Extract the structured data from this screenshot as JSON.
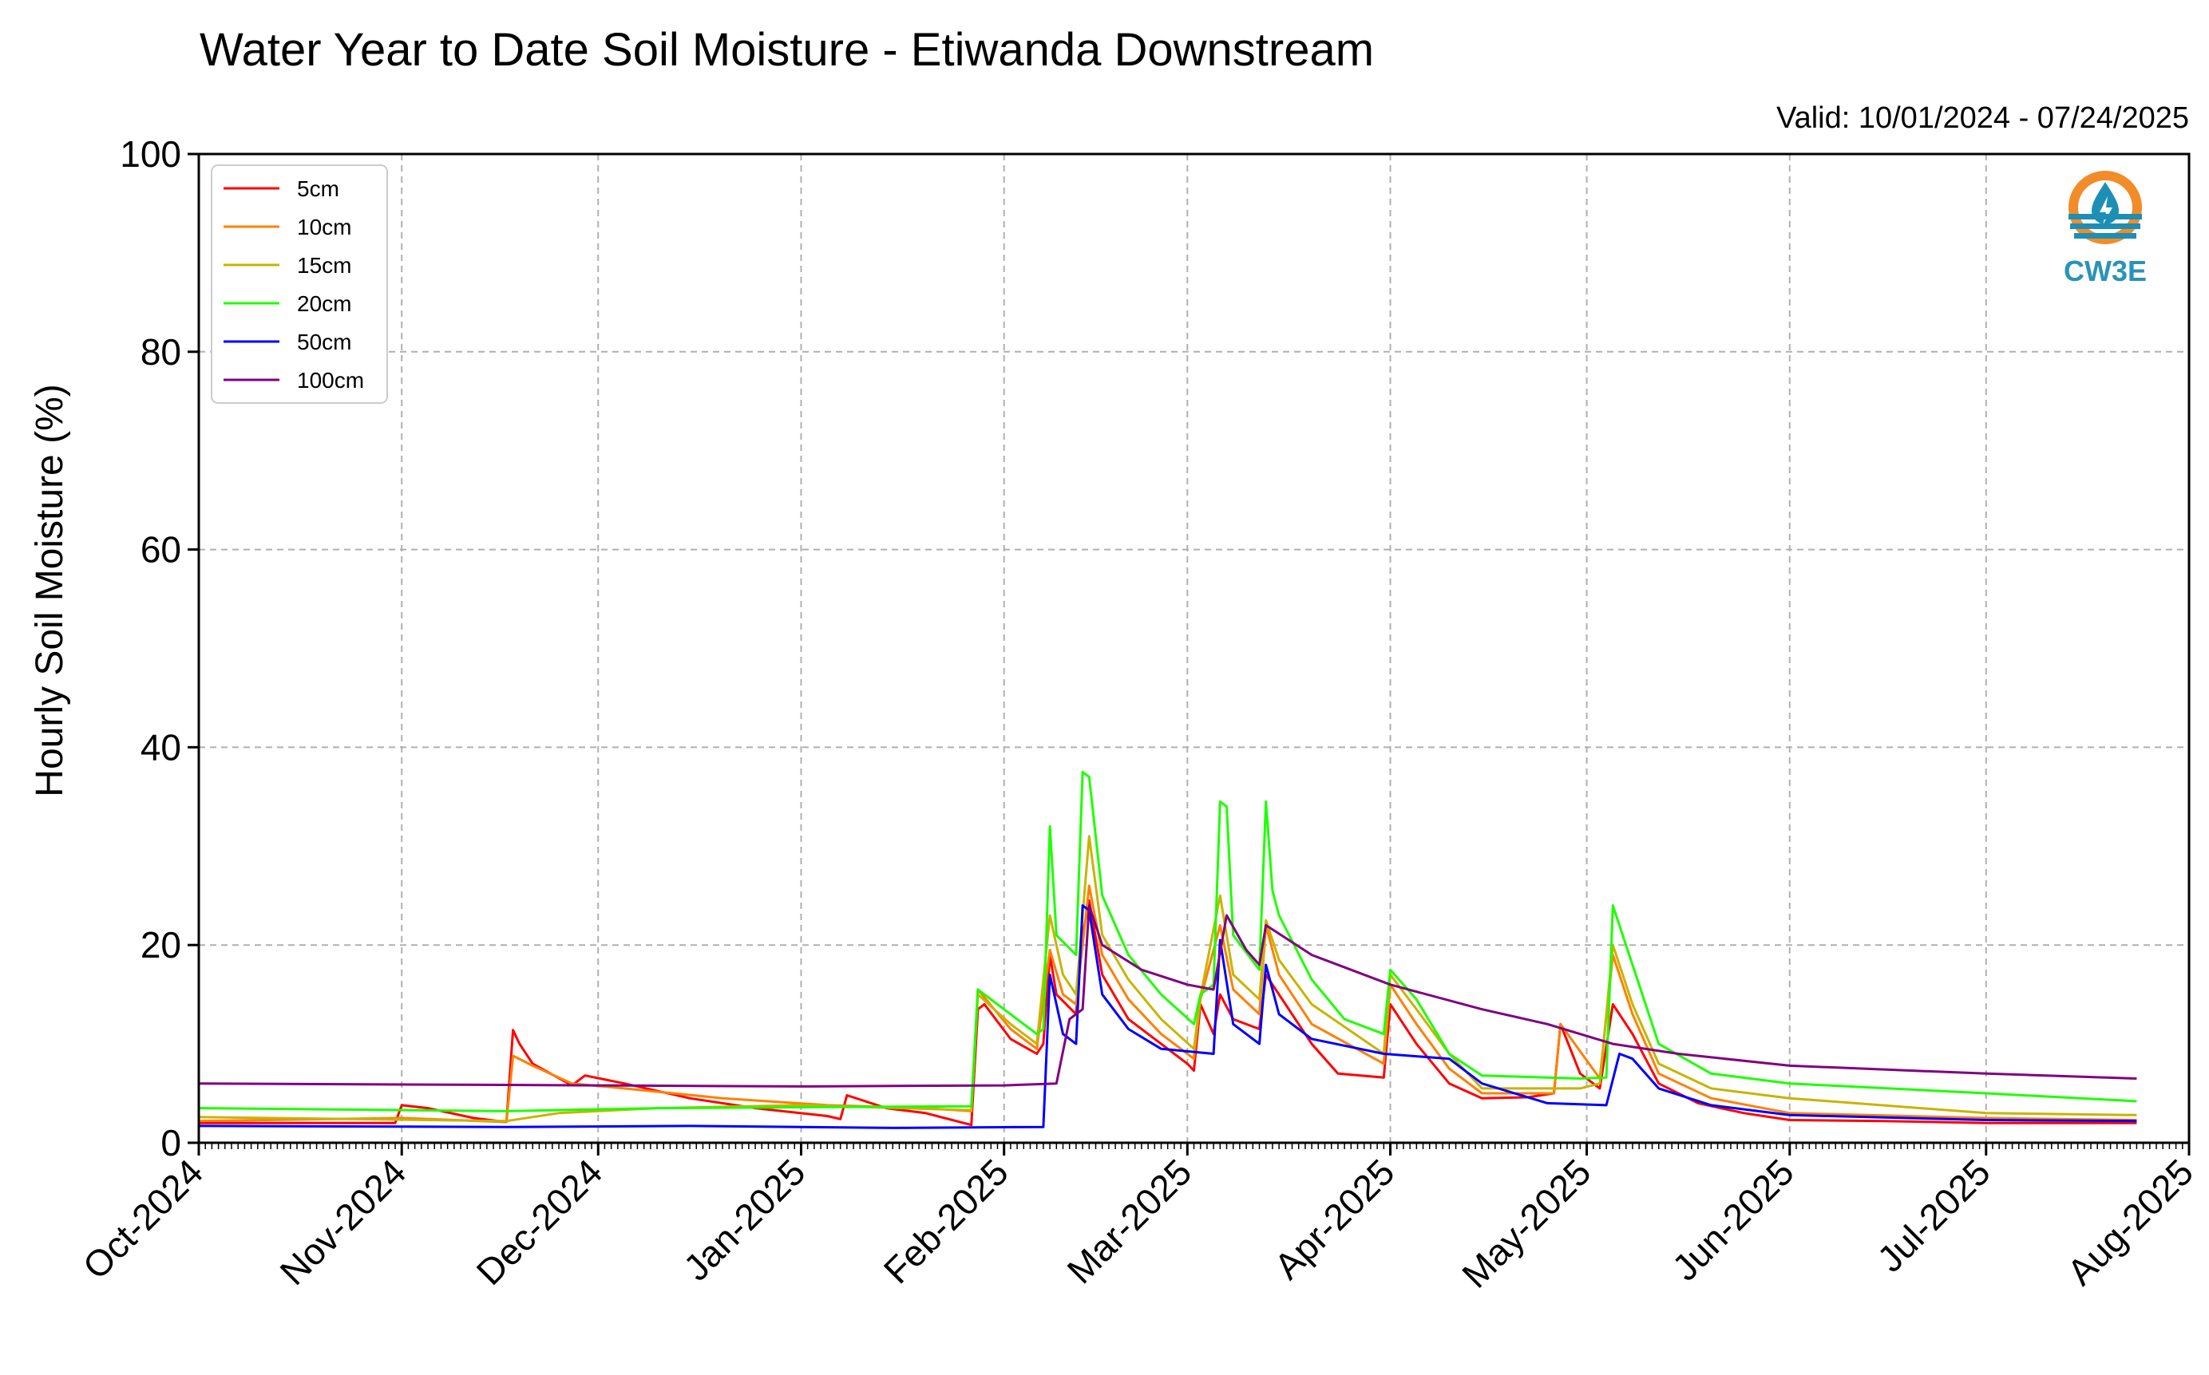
{
  "chart_data": {
    "type": "line",
    "title": "Water Year to Date Soil Moisture - Etiwanda Downstream",
    "valid_label": "Valid: 10/01/2024 - 07/24/2025",
    "ylabel": "Hourly Soil Moisture (%)",
    "xlabel": "",
    "ylim": [
      0,
      100
    ],
    "xlim": [
      "2024-10-01",
      "2025-08-01"
    ],
    "y_ticks": [
      "0",
      "20",
      "40",
      "60",
      "80",
      "100"
    ],
    "x_ticks": [
      {
        "date": "2024-10-01",
        "label": "Oct-2024"
      },
      {
        "date": "2024-11-01",
        "label": "Nov-2024"
      },
      {
        "date": "2024-12-01",
        "label": "Dec-2024"
      },
      {
        "date": "2025-01-01",
        "label": "Jan-2025"
      },
      {
        "date": "2025-02-01",
        "label": "Feb-2025"
      },
      {
        "date": "2025-03-01",
        "label": "Mar-2025"
      },
      {
        "date": "2025-04-01",
        "label": "Apr-2025"
      },
      {
        "date": "2025-05-01",
        "label": "May-2025"
      },
      {
        "date": "2025-06-01",
        "label": "Jun-2025"
      },
      {
        "date": "2025-07-01",
        "label": "Jul-2025"
      },
      {
        "date": "2025-08-01",
        "label": "Aug-2025"
      }
    ],
    "grid": true,
    "legend_position": "top-left",
    "series": [
      {
        "name": "5cm",
        "color": "#ff0000",
        "points": [
          [
            "2024-10-01",
            2.0
          ],
          [
            "2024-10-31",
            2.0
          ],
          [
            "2024-11-01",
            3.8
          ],
          [
            "2024-11-05",
            3.5
          ],
          [
            "2024-11-12",
            2.5
          ],
          [
            "2024-11-17",
            2.1
          ],
          [
            "2024-11-18",
            11.4
          ],
          [
            "2024-11-19",
            10.0
          ],
          [
            "2024-11-21",
            8.0
          ],
          [
            "2024-11-27",
            5.8
          ],
          [
            "2024-11-29",
            6.8
          ],
          [
            "2024-12-05",
            6.0
          ],
          [
            "2024-12-15",
            4.5
          ],
          [
            "2024-12-25",
            3.5
          ],
          [
            "2025-01-05",
            2.7
          ],
          [
            "2025-01-07",
            2.4
          ],
          [
            "2025-01-08",
            4.8
          ],
          [
            "2025-01-14",
            3.5
          ],
          [
            "2025-01-20",
            3.0
          ],
          [
            "2025-01-27",
            1.8
          ],
          [
            "2025-01-28",
            13.5
          ],
          [
            "2025-01-29",
            14.0
          ],
          [
            "2025-02-02",
            10.5
          ],
          [
            "2025-02-06",
            9.0
          ],
          [
            "2025-02-07",
            10.0
          ],
          [
            "2025-02-08",
            19.0
          ],
          [
            "2025-02-09",
            15.0
          ],
          [
            "2025-02-12",
            13.0
          ],
          [
            "2025-02-13",
            21.0
          ],
          [
            "2025-02-14",
            24.5
          ],
          [
            "2025-02-16",
            17.0
          ],
          [
            "2025-02-20",
            12.5
          ],
          [
            "2025-02-25",
            10.0
          ],
          [
            "2025-03-01",
            8.0
          ],
          [
            "2025-03-02",
            7.3
          ],
          [
            "2025-03-03",
            14.0
          ],
          [
            "2025-03-05",
            11.0
          ],
          [
            "2025-03-06",
            15.0
          ],
          [
            "2025-03-08",
            12.5
          ],
          [
            "2025-03-12",
            11.5
          ],
          [
            "2025-03-13",
            17.0
          ],
          [
            "2025-03-15",
            15.0
          ],
          [
            "2025-03-20",
            10.0
          ],
          [
            "2025-03-24",
            7.0
          ],
          [
            "2025-03-31",
            6.6
          ],
          [
            "2025-04-01",
            14.0
          ],
          [
            "2025-04-05",
            10.0
          ],
          [
            "2025-04-10",
            6.0
          ],
          [
            "2025-04-15",
            4.5
          ],
          [
            "2025-04-22",
            4.6
          ],
          [
            "2025-04-26",
            5.0
          ],
          [
            "2025-04-27",
            12.0
          ],
          [
            "2025-04-30",
            7.0
          ],
          [
            "2025-05-03",
            5.5
          ],
          [
            "2025-05-05",
            14.0
          ],
          [
            "2025-05-08",
            11.0
          ],
          [
            "2025-05-12",
            6.0
          ],
          [
            "2025-05-18",
            4.0
          ],
          [
            "2025-05-25",
            3.0
          ],
          [
            "2025-06-01",
            2.3
          ],
          [
            "2025-06-15",
            2.2
          ],
          [
            "2025-07-01",
            2.0
          ],
          [
            "2025-07-24",
            2.0
          ]
        ]
      },
      {
        "name": "10cm",
        "color": "#ff8000",
        "points": [
          [
            "2024-10-01",
            2.2
          ],
          [
            "2024-11-01",
            2.5
          ],
          [
            "2024-11-17",
            2.1
          ],
          [
            "2024-11-18",
            8.8
          ],
          [
            "2024-11-21",
            7.8
          ],
          [
            "2024-11-27",
            6.0
          ],
          [
            "2024-12-05",
            5.5
          ],
          [
            "2024-12-20",
            4.5
          ],
          [
            "2025-01-05",
            3.8
          ],
          [
            "2025-01-20",
            3.5
          ],
          [
            "2025-01-27",
            3.2
          ],
          [
            "2025-01-28",
            15.5
          ],
          [
            "2025-02-02",
            11.5
          ],
          [
            "2025-02-06",
            9.5
          ],
          [
            "2025-02-08",
            19.5
          ],
          [
            "2025-02-10",
            15.0
          ],
          [
            "2025-02-12",
            14.0
          ],
          [
            "2025-02-14",
            26.0
          ],
          [
            "2025-02-16",
            19.0
          ],
          [
            "2025-02-20",
            14.5
          ],
          [
            "2025-02-25",
            11.0
          ],
          [
            "2025-03-02",
            8.5
          ],
          [
            "2025-03-03",
            14.5
          ],
          [
            "2025-03-06",
            22.0
          ],
          [
            "2025-03-08",
            15.5
          ],
          [
            "2025-03-12",
            13.0
          ],
          [
            "2025-03-13",
            22.0
          ],
          [
            "2025-03-15",
            17.0
          ],
          [
            "2025-03-20",
            12.0
          ],
          [
            "2025-03-31",
            8.0
          ],
          [
            "2025-04-01",
            16.0
          ],
          [
            "2025-04-05",
            12.0
          ],
          [
            "2025-04-10",
            7.5
          ],
          [
            "2025-04-15",
            5.0
          ],
          [
            "2025-04-26",
            5.0
          ],
          [
            "2025-04-27",
            12.0
          ],
          [
            "2025-05-03",
            6.5
          ],
          [
            "2025-05-05",
            19.0
          ],
          [
            "2025-05-08",
            13.0
          ],
          [
            "2025-05-12",
            7.0
          ],
          [
            "2025-05-20",
            4.5
          ],
          [
            "2025-06-01",
            3.0
          ],
          [
            "2025-07-01",
            2.5
          ],
          [
            "2025-07-24",
            2.3
          ]
        ]
      },
      {
        "name": "15cm",
        "color": "#c8b400",
        "points": [
          [
            "2024-10-01",
            2.6
          ],
          [
            "2024-11-17",
            2.2
          ],
          [
            "2024-11-25",
            3.0
          ],
          [
            "2024-12-10",
            3.5
          ],
          [
            "2025-01-01",
            3.8
          ],
          [
            "2025-01-27",
            3.3
          ],
          [
            "2025-01-28",
            15.0
          ],
          [
            "2025-02-02",
            12.0
          ],
          [
            "2025-02-06",
            10.0
          ],
          [
            "2025-02-08",
            23.0
          ],
          [
            "2025-02-10",
            17.0
          ],
          [
            "2025-02-12",
            15.0
          ],
          [
            "2025-02-14",
            31.0
          ],
          [
            "2025-02-16",
            21.0
          ],
          [
            "2025-02-20",
            16.5
          ],
          [
            "2025-02-25",
            12.5
          ],
          [
            "2025-03-02",
            9.5
          ],
          [
            "2025-03-03",
            14.8
          ],
          [
            "2025-03-06",
            25.0
          ],
          [
            "2025-03-08",
            17.0
          ],
          [
            "2025-03-12",
            14.5
          ],
          [
            "2025-03-13",
            22.5
          ],
          [
            "2025-03-15",
            18.5
          ],
          [
            "2025-03-20",
            14.0
          ],
          [
            "2025-03-31",
            9.0
          ],
          [
            "2025-04-01",
            17.0
          ],
          [
            "2025-04-05",
            13.5
          ],
          [
            "2025-04-10",
            9.0
          ],
          [
            "2025-04-15",
            5.5
          ],
          [
            "2025-04-30",
            5.5
          ],
          [
            "2025-05-03",
            6.0
          ],
          [
            "2025-05-05",
            20.0
          ],
          [
            "2025-05-08",
            14.0
          ],
          [
            "2025-05-12",
            8.0
          ],
          [
            "2025-05-20",
            5.5
          ],
          [
            "2025-06-01",
            4.5
          ],
          [
            "2025-07-01",
            3.0
          ],
          [
            "2025-07-24",
            2.8
          ]
        ]
      },
      {
        "name": "20cm",
        "color": "#1eff00",
        "points": [
          [
            "2024-10-01",
            3.5
          ],
          [
            "2024-11-17",
            3.2
          ],
          [
            "2024-12-10",
            3.5
          ],
          [
            "2025-01-27",
            3.7
          ],
          [
            "2025-01-28",
            15.5
          ],
          [
            "2025-02-06",
            11.0
          ],
          [
            "2025-02-07",
            11.5
          ],
          [
            "2025-02-08",
            32.0
          ],
          [
            "2025-02-09",
            21.0
          ],
          [
            "2025-02-12",
            19.0
          ],
          [
            "2025-02-13",
            37.5
          ],
          [
            "2025-02-14",
            37.0
          ],
          [
            "2025-02-16",
            25.0
          ],
          [
            "2025-02-20",
            19.0
          ],
          [
            "2025-02-25",
            15.0
          ],
          [
            "2025-03-02",
            12.0
          ],
          [
            "2025-03-03",
            15.0
          ],
          [
            "2025-03-05",
            16.0
          ],
          [
            "2025-03-06",
            34.5
          ],
          [
            "2025-03-07",
            34.0
          ],
          [
            "2025-03-08",
            21.0
          ],
          [
            "2025-03-12",
            17.5
          ],
          [
            "2025-03-13",
            34.5
          ],
          [
            "2025-03-14",
            25.5
          ],
          [
            "2025-03-15",
            23.0
          ],
          [
            "2025-03-20",
            16.5
          ],
          [
            "2025-03-25",
            12.5
          ],
          [
            "2025-03-31",
            11.0
          ],
          [
            "2025-04-01",
            17.5
          ],
          [
            "2025-04-05",
            14.5
          ],
          [
            "2025-04-10",
            9.0
          ],
          [
            "2025-04-15",
            6.8
          ],
          [
            "2025-04-30",
            6.5
          ],
          [
            "2025-05-04",
            6.6
          ],
          [
            "2025-05-05",
            24.0
          ],
          [
            "2025-05-08",
            18.0
          ],
          [
            "2025-05-12",
            10.0
          ],
          [
            "2025-05-20",
            7.0
          ],
          [
            "2025-06-01",
            6.0
          ],
          [
            "2025-07-01",
            5.0
          ],
          [
            "2025-07-24",
            4.2
          ]
        ]
      },
      {
        "name": "50cm",
        "color": "#0000ff",
        "points": [
          [
            "2024-10-01",
            1.7
          ],
          [
            "2024-11-17",
            1.6
          ],
          [
            "2024-12-15",
            1.7
          ],
          [
            "2025-01-15",
            1.5
          ],
          [
            "2025-02-07",
            1.6
          ],
          [
            "2025-02-08",
            17.0
          ],
          [
            "2025-02-10",
            11.0
          ],
          [
            "2025-02-12",
            10.0
          ],
          [
            "2025-02-13",
            24.0
          ],
          [
            "2025-02-14",
            23.5
          ],
          [
            "2025-02-16",
            15.0
          ],
          [
            "2025-02-20",
            11.5
          ],
          [
            "2025-02-25",
            9.5
          ],
          [
            "2025-03-05",
            9.0
          ],
          [
            "2025-03-06",
            20.5
          ],
          [
            "2025-03-08",
            12.0
          ],
          [
            "2025-03-12",
            10.0
          ],
          [
            "2025-03-13",
            18.0
          ],
          [
            "2025-03-15",
            13.0
          ],
          [
            "2025-03-20",
            10.5
          ],
          [
            "2025-03-31",
            9.0
          ],
          [
            "2025-04-10",
            8.5
          ],
          [
            "2025-04-15",
            6.0
          ],
          [
            "2025-04-25",
            4.0
          ],
          [
            "2025-05-04",
            3.8
          ],
          [
            "2025-05-06",
            9.0
          ],
          [
            "2025-05-08",
            8.5
          ],
          [
            "2025-05-12",
            5.5
          ],
          [
            "2025-05-20",
            3.8
          ],
          [
            "2025-06-01",
            2.8
          ],
          [
            "2025-07-01",
            2.3
          ],
          [
            "2025-07-24",
            2.2
          ]
        ]
      },
      {
        "name": "100cm",
        "color": "#800080",
        "points": [
          [
            "2024-10-01",
            6.0
          ],
          [
            "2024-12-01",
            5.8
          ],
          [
            "2025-01-01",
            5.7
          ],
          [
            "2025-02-01",
            5.8
          ],
          [
            "2025-02-09",
            6.0
          ],
          [
            "2025-02-11",
            12.5
          ],
          [
            "2025-02-13",
            13.5
          ],
          [
            "2025-02-14",
            24.0
          ],
          [
            "2025-02-16",
            20.0
          ],
          [
            "2025-02-22",
            17.5
          ],
          [
            "2025-03-01",
            16.0
          ],
          [
            "2025-03-05",
            15.5
          ],
          [
            "2025-03-07",
            23.0
          ],
          [
            "2025-03-10",
            19.5
          ],
          [
            "2025-03-12",
            18.0
          ],
          [
            "2025-03-13",
            22.0
          ],
          [
            "2025-03-20",
            19.0
          ],
          [
            "2025-04-01",
            16.0
          ],
          [
            "2025-04-15",
            13.5
          ],
          [
            "2025-04-25",
            12.0
          ],
          [
            "2025-05-05",
            10.0
          ],
          [
            "2025-05-15",
            9.0
          ],
          [
            "2025-06-01",
            7.8
          ],
          [
            "2025-07-01",
            7.0
          ],
          [
            "2025-07-24",
            6.5
          ]
        ]
      }
    ]
  },
  "logo": {
    "text": "CW3E",
    "ring_color": "#f28c28",
    "water_color": "#1d8fb5",
    "text_color": "#2a93b8"
  }
}
